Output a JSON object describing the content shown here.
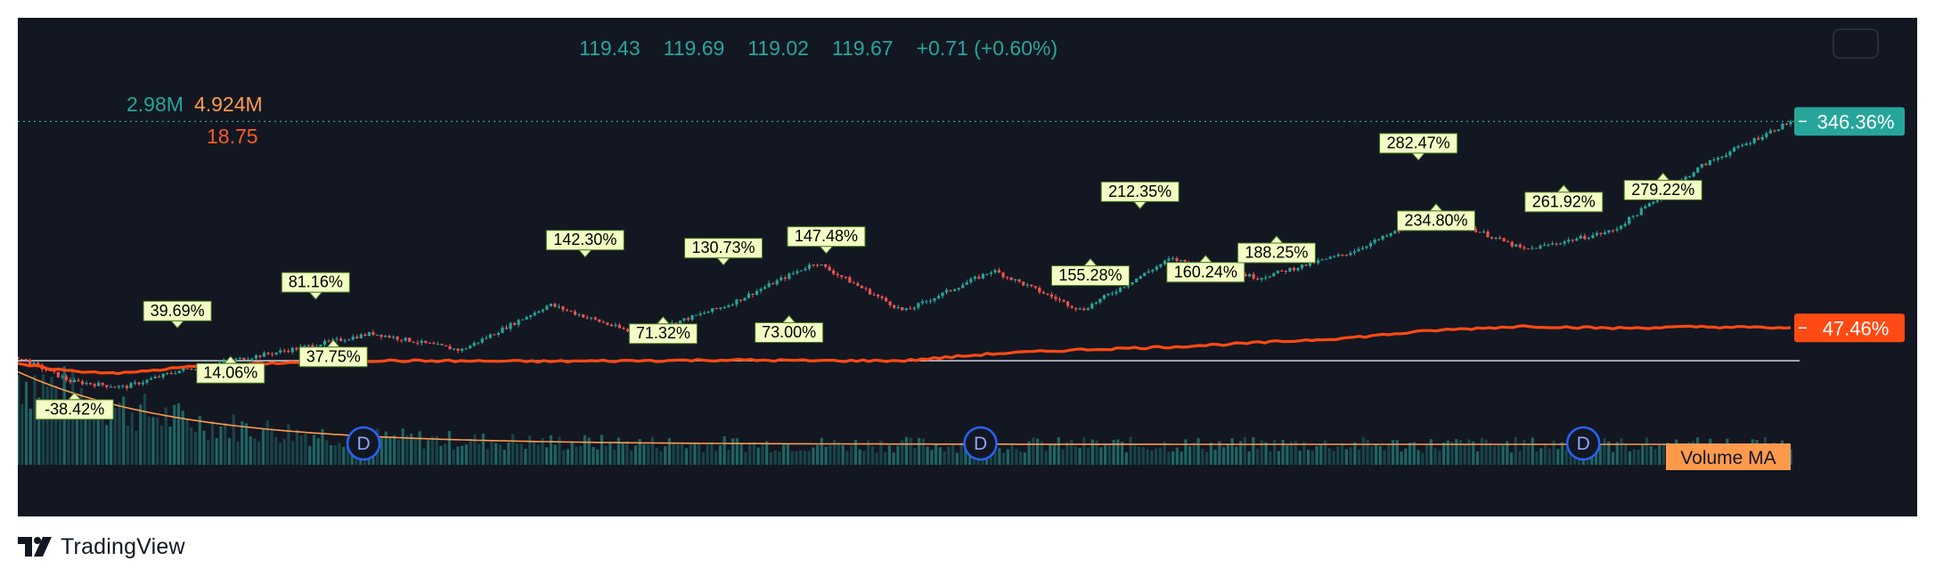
{
  "header": {
    "open": "119.43",
    "high": "119.69",
    "low": "119.02",
    "close": "119.67",
    "change": "+0.71 (+0.60%)"
  },
  "volume_readout": {
    "volume": "2.98M",
    "volume_ma": "4.924M"
  },
  "secondary_readout": "18.75",
  "branding": "TradingView",
  "colors": {
    "background": "#131722",
    "up": "#26a69a",
    "down": "#ef5350",
    "compare_line": "#ff4a14",
    "volume_ma": "#ff9a4d",
    "label_bg": "#f3ffc4",
    "label_border": "#4a7a20",
    "dividend": "#2962ff"
  },
  "chart_data": {
    "type": "line",
    "series": [
      {
        "name": "",
        "kind": "candlestick-percent",
        "x": [
          0,
          3,
          6,
          9,
          12,
          15,
          20,
          25,
          30,
          35,
          40,
          45,
          50,
          55,
          60,
          65,
          70,
          75,
          80,
          85,
          90,
          95,
          100
        ],
        "values": [
          5,
          -30,
          -38.42,
          -15,
          0,
          14.06,
          39.69,
          15,
          81.16,
          37.75,
          80,
          142.3,
          71.32,
          130.73,
          73,
          147.48,
          120,
          155.28,
          212.35,
          160.24,
          188.25,
          282.47,
          346.36
        ]
      },
      {
        "name": "",
        "kind": "compare-line",
        "x": [
          0,
          3,
          6,
          10,
          15,
          20,
          30,
          35,
          40,
          45,
          50,
          55,
          60,
          65,
          70,
          75,
          80,
          85,
          90,
          95,
          100
        ],
        "values": [
          -5,
          -15,
          -18,
          -8,
          -3,
          0,
          -1,
          0,
          1,
          0,
          0,
          10,
          16,
          20,
          26,
          33,
          44,
          50,
          47,
          49,
          47.46
        ]
      }
    ],
    "annotations": [
      {
        "label": "-38.42%",
        "x": 3.2,
        "value": -38.42,
        "pos": "below"
      },
      {
        "label": "14.06%",
        "x": 12.0,
        "value": 14.06,
        "pos": "below"
      },
      {
        "label": "39.69%",
        "x": 9.0,
        "value": 39.69,
        "pos": "above"
      },
      {
        "label": "81.16%",
        "x": 16.8,
        "value": 81.16,
        "pos": "above"
      },
      {
        "label": "37.75%",
        "x": 17.8,
        "value": 37.75,
        "pos": "below"
      },
      {
        "label": "142.30%",
        "x": 32.0,
        "value": 142.3,
        "pos": "above"
      },
      {
        "label": "71.32%",
        "x": 36.4,
        "value": 71.32,
        "pos": "below"
      },
      {
        "label": "130.73%",
        "x": 39.8,
        "value": 130.73,
        "pos": "above"
      },
      {
        "label": "73.00%",
        "x": 43.5,
        "value": 73.0,
        "pos": "below"
      },
      {
        "label": "147.48%",
        "x": 45.6,
        "value": 147.48,
        "pos": "above"
      },
      {
        "label": "155.28%",
        "x": 60.5,
        "value": 155.28,
        "pos": "below"
      },
      {
        "label": "212.35%",
        "x": 63.3,
        "value": 212.35,
        "pos": "above"
      },
      {
        "label": "160.24%",
        "x": 67.0,
        "value": 160.24,
        "pos": "below"
      },
      {
        "label": "188.25%",
        "x": 71.0,
        "value": 188.25,
        "pos": "below"
      },
      {
        "label": "282.47%",
        "x": 79.0,
        "value": 282.47,
        "pos": "above"
      },
      {
        "label": "234.80%",
        "x": 80.0,
        "value": 234.8,
        "pos": "below"
      },
      {
        "label": "261.92%",
        "x": 87.2,
        "value": 261.92,
        "pos": "below"
      },
      {
        "label": "279.22%",
        "x": 92.8,
        "value": 279.22,
        "pos": "below"
      }
    ],
    "price_badges": [
      {
        "label": "346.36%",
        "value": 346.36,
        "color": "#26a69a"
      },
      {
        "label": "47.46%",
        "value": 47.46,
        "color": "#ff4a14"
      }
    ],
    "volume_label": "Volume MA",
    "dividend_markers": [
      {
        "label": "D",
        "x": 19.5
      },
      {
        "label": "D",
        "x": 54.3
      },
      {
        "label": "D",
        "x": 88.3
      }
    ],
    "ylim": [
      -45,
      370
    ],
    "xlim": [
      0,
      100
    ],
    "grid": false
  }
}
